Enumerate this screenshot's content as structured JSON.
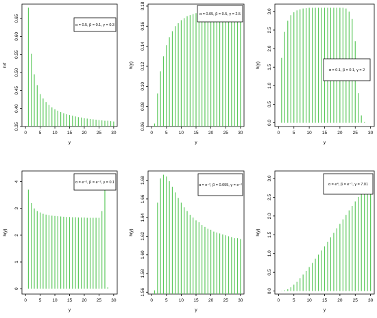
{
  "chart_data": [
    {
      "type": "bar",
      "xlabel": "y",
      "ylabel": "hrf",
      "legend": "α = 0.5, β = 0.1, γ = 0.3",
      "legend_position": "top-right",
      "xlim": [
        0,
        30
      ],
      "ylim": [
        0.35,
        0.69
      ],
      "xticks": [
        "0",
        "5",
        "10",
        "15",
        "20",
        "25",
        "30"
      ],
      "yticks": [
        "0.35",
        "0.40",
        "0.45",
        "0.50",
        "0.55",
        "0.60",
        "0.65"
      ],
      "x": [
        1,
        2,
        3,
        4,
        5,
        6,
        7,
        8,
        9,
        10,
        11,
        12,
        13,
        14,
        15,
        16,
        17,
        18,
        19,
        20,
        21,
        22,
        23,
        24,
        25,
        26,
        27,
        28,
        29,
        30
      ],
      "values": [
        0.68,
        0.552,
        0.495,
        0.465,
        0.44,
        0.428,
        0.418,
        0.41,
        0.403,
        0.398,
        0.394,
        0.39,
        0.387,
        0.384,
        0.382,
        0.38,
        0.378,
        0.376,
        0.375,
        0.373,
        0.372,
        0.371,
        0.37,
        0.369,
        0.368,
        0.367,
        0.366,
        0.366,
        0.365,
        0.364
      ]
    },
    {
      "type": "bar",
      "xlabel": "y",
      "ylabel": "h(y)",
      "legend": "α = 0.05, β = 0.5, γ = 2.5",
      "legend_position": "top-right",
      "xlim": [
        0,
        30
      ],
      "ylim": [
        0.06,
        0.182
      ],
      "xticks": [
        "0",
        "5",
        "10",
        "15",
        "20",
        "25",
        "30"
      ],
      "yticks": [
        "0.06",
        "0.08",
        "0.10",
        "0.12",
        "0.14",
        "0.16",
        "0.18"
      ],
      "x": [
        1,
        2,
        3,
        4,
        5,
        6,
        7,
        8,
        9,
        10,
        11,
        12,
        13,
        14,
        15,
        16,
        17,
        18,
        19,
        20,
        21,
        22,
        23,
        24,
        25,
        26,
        27,
        28,
        29,
        30
      ],
      "values": [
        0.063,
        0.093,
        0.115,
        0.13,
        0.141,
        0.149,
        0.155,
        0.16,
        0.163,
        0.166,
        0.168,
        0.17,
        0.171,
        0.172,
        0.173,
        0.174,
        0.1745,
        0.175,
        0.1755,
        0.176,
        0.1762,
        0.1764,
        0.1766,
        0.1768,
        0.177,
        0.1771,
        0.1772,
        0.1773,
        0.1774,
        0.1775
      ]
    },
    {
      "type": "bar",
      "xlabel": "y",
      "ylabel": "h(y)",
      "legend": "α = 0.1, β = 0.1, γ = 2",
      "legend_position": "right",
      "xlim": [
        0,
        30
      ],
      "ylim": [
        -0.1,
        3.2
      ],
      "xticks": [
        "0",
        "5",
        "10",
        "15",
        "20",
        "25",
        "30"
      ],
      "yticks": [
        "0.0",
        "0.5",
        "1.0",
        "1.5",
        "2.0",
        "2.5",
        "3.0"
      ],
      "x": [
        1,
        2,
        3,
        4,
        5,
        6,
        7,
        8,
        9,
        10,
        11,
        12,
        13,
        14,
        15,
        16,
        17,
        18,
        19,
        20,
        21,
        22,
        23,
        24,
        25,
        26,
        27,
        28,
        29,
        30
      ],
      "values": [
        1.75,
        2.45,
        2.75,
        2.9,
        2.98,
        3.03,
        3.06,
        3.08,
        3.09,
        3.1,
        3.1,
        3.1,
        3.1,
        3.1,
        3.1,
        3.1,
        3.1,
        3.1,
        3.1,
        3.1,
        3.1,
        3.08,
        3.0,
        2.8,
        2.2,
        0.8,
        0.2,
        0.02,
        0.0,
        0.0
      ]
    },
    {
      "type": "bar",
      "xlabel": "y",
      "ylabel": "h(y)",
      "legend": "α = e⁻², β = e⁻², γ = 0.1",
      "legend_position": "top-right",
      "xlim": [
        0,
        30
      ],
      "ylim": [
        -0.2,
        4.4
      ],
      "xticks": [
        "0",
        "5",
        "10",
        "15",
        "20",
        "25",
        "30"
      ],
      "yticks": [
        "0",
        "1",
        "2",
        "3",
        "4"
      ],
      "x": [
        1,
        2,
        3,
        4,
        5,
        6,
        7,
        8,
        9,
        10,
        11,
        12,
        13,
        14,
        15,
        16,
        17,
        18,
        19,
        20,
        21,
        22,
        23,
        24,
        25,
        26,
        27,
        28,
        29,
        30
      ],
      "values": [
        3.7,
        3.2,
        3.0,
        2.9,
        2.85,
        2.8,
        2.77,
        2.75,
        2.73,
        2.72,
        2.71,
        2.7,
        2.69,
        2.68,
        2.68,
        2.67,
        2.67,
        2.66,
        2.66,
        2.66,
        2.65,
        2.65,
        2.65,
        2.65,
        2.65,
        2.9,
        3.7,
        0.05,
        0.0,
        0.0
      ]
    },
    {
      "type": "bar",
      "xlabel": "y",
      "ylabel": "h(y)",
      "legend": "α = e⁻², β = 0.095, γ = e⁻¹",
      "legend_position": "top-right",
      "xlim": [
        0,
        30
      ],
      "ylim": [
        1.558,
        1.69
      ],
      "xticks": [
        "0",
        "5",
        "10",
        "15",
        "20",
        "25",
        "30"
      ],
      "yticks": [
        "1.56",
        "1.58",
        "1.60",
        "1.62",
        "1.64",
        "1.66",
        "1.68"
      ],
      "x": [
        1,
        2,
        3,
        4,
        5,
        6,
        7,
        8,
        9,
        10,
        11,
        12,
        13,
        14,
        15,
        16,
        17,
        18,
        19,
        20,
        21,
        22,
        23,
        24,
        25,
        26,
        27,
        28,
        29,
        30
      ],
      "values": [
        1.562,
        1.656,
        1.682,
        1.686,
        1.684,
        1.679,
        1.673,
        1.667,
        1.661,
        1.656,
        1.651,
        1.647,
        1.643,
        1.64,
        1.637,
        1.635,
        1.632,
        1.63,
        1.628,
        1.627,
        1.625,
        1.624,
        1.623,
        1.622,
        1.621,
        1.62,
        1.619,
        1.618,
        1.618,
        1.617
      ]
    },
    {
      "type": "bar",
      "xlabel": "y",
      "ylabel": "h(y)",
      "legend": "α = e⁴, β = e⁻⁷, γ = 7.01",
      "legend_position": "top-right",
      "xlim": [
        0,
        30
      ],
      "ylim": [
        -0.08,
        3.2
      ],
      "xticks": [
        "0",
        "5",
        "10",
        "15",
        "20",
        "25",
        "30"
      ],
      "yticks": [
        "0.0",
        "0.5",
        "1.0",
        "1.5",
        "2.0",
        "2.5",
        "3.0"
      ],
      "x": [
        1,
        2,
        3,
        4,
        5,
        6,
        7,
        8,
        9,
        10,
        11,
        12,
        13,
        14,
        15,
        16,
        17,
        18,
        19,
        20,
        21,
        22,
        23,
        24,
        25,
        26,
        27,
        28,
        29,
        30
      ],
      "values": [
        0.005,
        0.02,
        0.05,
        0.1,
        0.17,
        0.25,
        0.34,
        0.44,
        0.54,
        0.64,
        0.75,
        0.86,
        0.97,
        1.08,
        1.19,
        1.31,
        1.43,
        1.55,
        1.67,
        1.79,
        1.91,
        2.03,
        2.15,
        2.27,
        2.39,
        2.51,
        2.63,
        2.75,
        2.88,
        3.02
      ]
    }
  ],
  "colors": {
    "bar": "#5cc85c",
    "axis": "#000000",
    "frame": "#000000"
  }
}
